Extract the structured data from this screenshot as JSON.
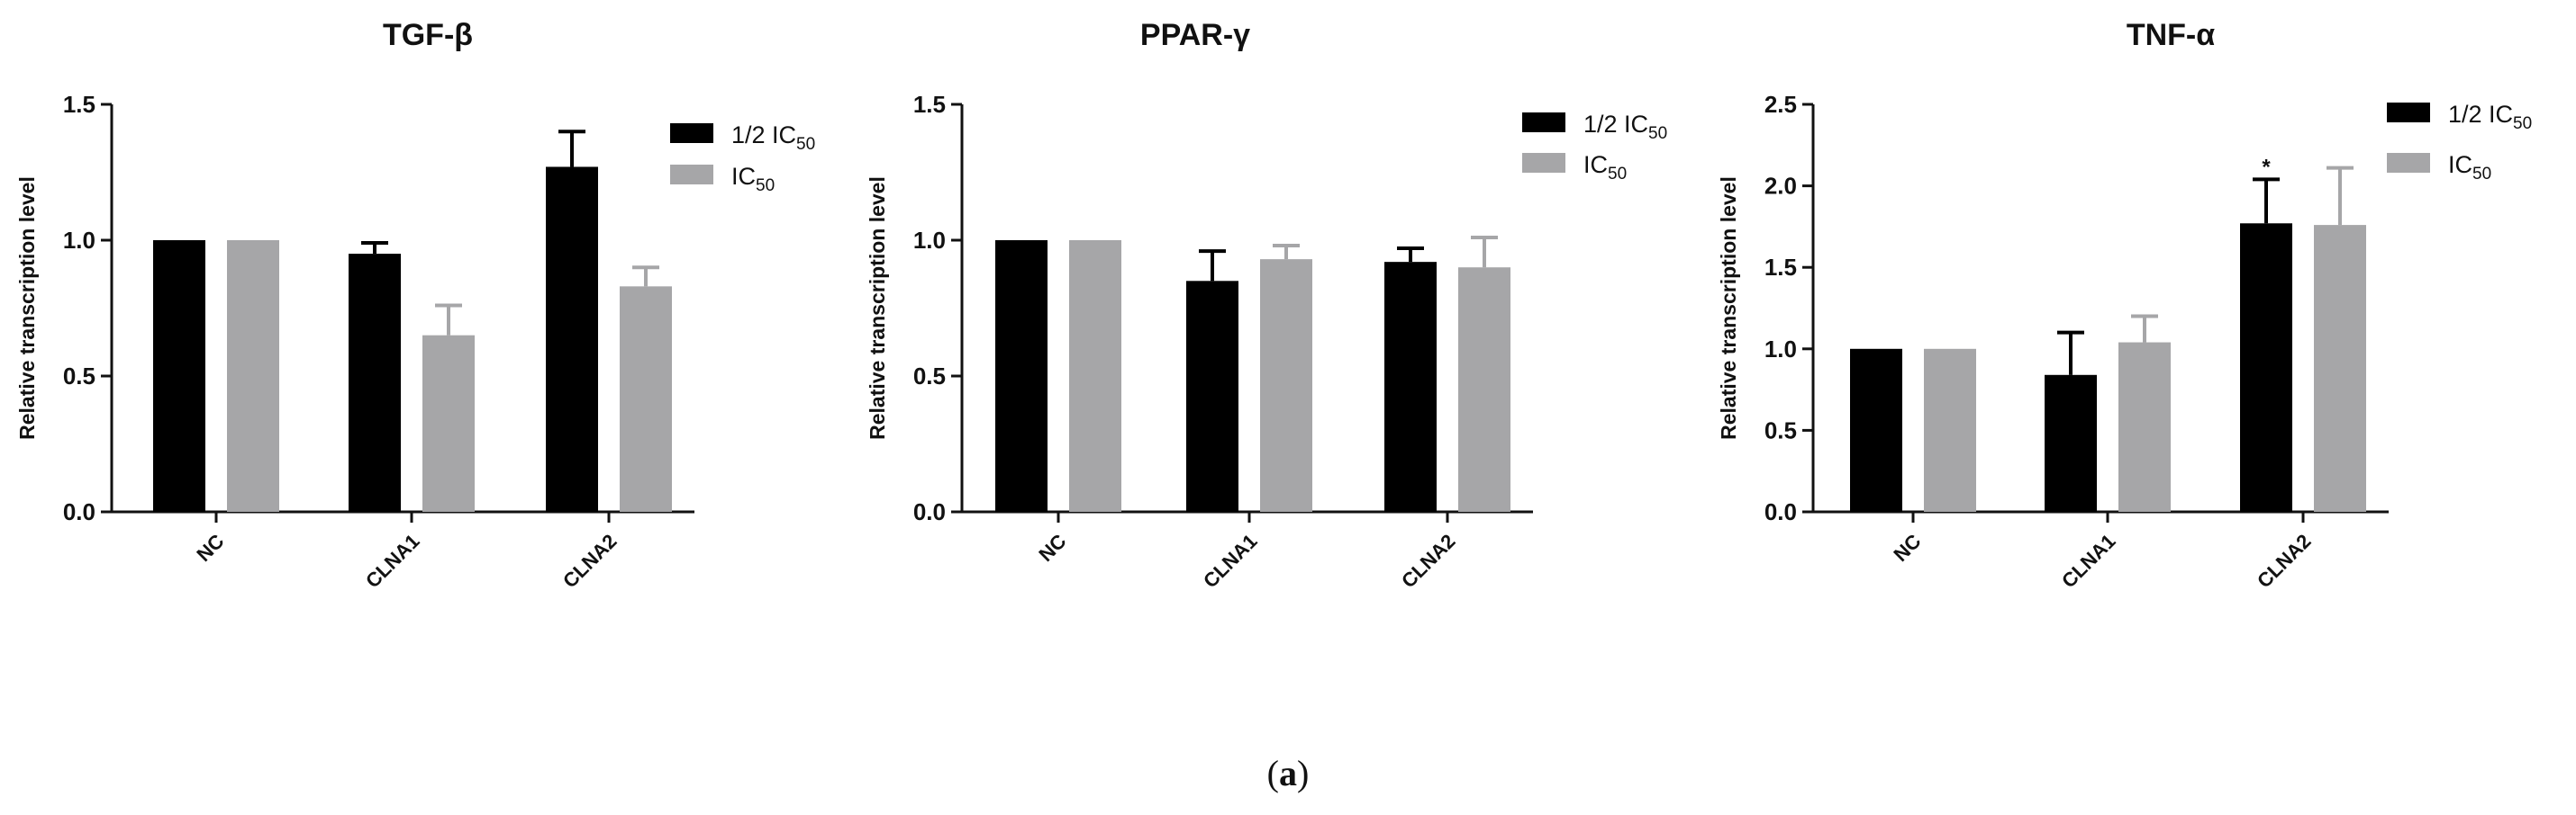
{
  "caption": {
    "open": "(",
    "letter": "a",
    "close": ")"
  },
  "legend": {
    "prefix": "1/2 IC",
    "ic": "IC",
    "subscript": "50"
  },
  "colors": {
    "half_ic50": "#000000",
    "ic50": "#a6a6a8",
    "axis": "#111111"
  },
  "chart_data": [
    {
      "type": "bar",
      "title": "TGF-β",
      "ylabel": "Relative transcription level",
      "xlabel": "",
      "ylim": [
        0,
        1.5
      ],
      "yticks": [
        "0.0",
        "0.5",
        "1.0",
        "1.5"
      ],
      "categories": [
        "NC",
        "CLNA1",
        "CLNA2"
      ],
      "series": [
        {
          "name": "1/2 IC50",
          "values": [
            1.0,
            0.95,
            1.27
          ],
          "error": [
            0,
            0.04,
            0.13
          ]
        },
        {
          "name": "IC50",
          "values": [
            1.0,
            0.65,
            0.83
          ],
          "error": [
            0,
            0.11,
            0.07
          ]
        }
      ],
      "annotations": [],
      "legend": "top-right"
    },
    {
      "type": "bar",
      "title": "PPAR-γ",
      "ylabel": "Relative transcription level",
      "xlabel": "",
      "ylim": [
        0,
        1.5
      ],
      "yticks": [
        "0.0",
        "0.5",
        "1.0",
        "1.5"
      ],
      "categories": [
        "NC",
        "CLNA1",
        "CLNA2"
      ],
      "series": [
        {
          "name": "1/2 IC50",
          "values": [
            1.0,
            0.85,
            0.92
          ],
          "error": [
            0,
            0.11,
            0.05
          ]
        },
        {
          "name": "IC50",
          "values": [
            1.0,
            0.93,
            0.9
          ],
          "error": [
            0,
            0.05,
            0.11
          ]
        }
      ],
      "annotations": [],
      "legend": "top-right"
    },
    {
      "type": "bar",
      "title": "TNF-α",
      "ylabel": "Relative transcription level",
      "xlabel": "",
      "ylim": [
        0,
        2.5
      ],
      "yticks": [
        "0.0",
        "0.5",
        "1.0",
        "1.5",
        "2.0",
        "2.5"
      ],
      "categories": [
        "NC",
        "CLNA1",
        "CLNA2"
      ],
      "series": [
        {
          "name": "1/2 IC50",
          "values": [
            1.0,
            0.84,
            1.77
          ],
          "error": [
            0,
            0.26,
            0.27
          ]
        },
        {
          "name": "IC50",
          "values": [
            1.0,
            1.04,
            1.76
          ],
          "error": [
            0,
            0.16,
            0.35
          ]
        }
      ],
      "annotations": [
        {
          "text": "*",
          "category": "CLNA2",
          "series": "1/2 IC50"
        }
      ],
      "legend": "top-right"
    }
  ]
}
